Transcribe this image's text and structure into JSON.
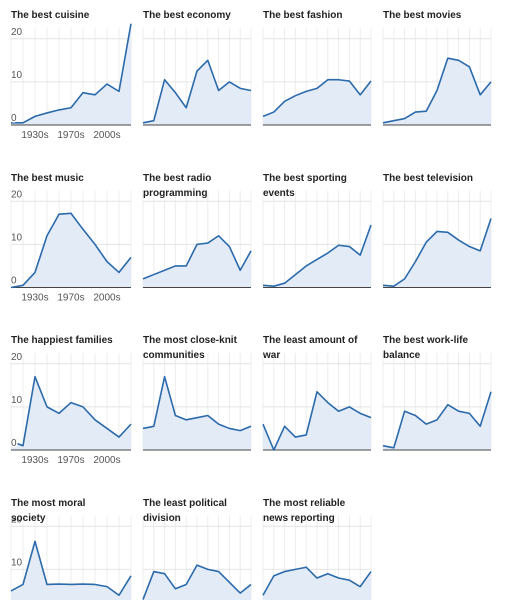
{
  "chart_data": {
    "type": "line",
    "categories": [
      null,
      null,
      "1930s",
      null,
      null,
      "1970s",
      null,
      null,
      "2000s",
      null,
      null
    ],
    "ylim": [
      0,
      22.5
    ],
    "yticks": [
      0,
      10,
      20
    ],
    "grid": true,
    "color": "#2b6aab",
    "fill": "#e3ebf7",
    "panels": [
      {
        "title": "The best cuisine",
        "values": [
          0.5,
          0.5,
          2,
          2.8,
          3.5,
          4,
          7.5,
          7,
          9.5,
          7.8,
          23.5
        ]
      },
      {
        "title": "The best economy",
        "values": [
          0.5,
          1,
          10.5,
          7.5,
          4,
          12.5,
          15,
          8,
          10,
          8.5,
          8
        ]
      },
      {
        "title": "The best fashion",
        "values": [
          2,
          3,
          5.5,
          6.8,
          7.8,
          8.5,
          10.5,
          10.5,
          10.2,
          7,
          10.2
        ]
      },
      {
        "title": "The best movies",
        "values": [
          0.5,
          1,
          1.5,
          3,
          3.2,
          8,
          15.5,
          15,
          13.5,
          7,
          10
        ]
      },
      {
        "title": "The best music",
        "values": [
          0,
          0.5,
          3.5,
          12,
          17,
          17.2,
          13.5,
          10,
          6,
          3.5,
          7
        ]
      },
      {
        "title": "The best radio programming",
        "values": [
          2,
          3,
          4,
          5,
          5,
          10,
          10.3,
          12,
          9.5,
          4,
          8.5
        ]
      },
      {
        "title": "The best sporting events",
        "values": [
          0.5,
          0.3,
          1,
          3,
          5,
          6.5,
          8,
          9.8,
          9.5,
          7.5,
          14.5
        ]
      },
      {
        "title": "The best television",
        "values": [
          0.5,
          0.3,
          2,
          6,
          10.5,
          13,
          12.8,
          11,
          9.5,
          8.5,
          16
        ]
      },
      {
        "title": "The happiest families",
        "values": [
          2,
          1,
          17,
          10,
          8.5,
          11,
          10,
          7,
          5,
          3,
          6
        ]
      },
      {
        "title": "The most close-knit communities",
        "values": [
          5,
          5.5,
          17,
          8,
          7,
          7.5,
          8,
          6,
          5,
          4.5,
          5.5
        ]
      },
      {
        "title": "The least amount of war",
        "values": [
          6,
          0,
          5.5,
          3,
          3.5,
          13.5,
          11,
          9,
          10,
          8.5,
          7.5
        ]
      },
      {
        "title": "The best work-life balance",
        "values": [
          1,
          0.5,
          9,
          8,
          6,
          7,
          10.5,
          9,
          8.5,
          5.5,
          13.5
        ]
      },
      {
        "title": "The most moral society",
        "values": [
          5,
          6.5,
          16.5,
          6.5,
          6.6,
          6.5,
          6.6,
          6.5,
          6,
          4,
          8.5
        ]
      },
      {
        "title": "The least political division",
        "values": [
          3,
          9.5,
          9,
          5.5,
          6.5,
          11,
          10,
          9.5,
          7,
          4.5,
          6.5
        ]
      },
      {
        "title": "The most reliable news reporting",
        "values": [
          4,
          8.5,
          9.5,
          10,
          10.5,
          8,
          9,
          8,
          7.5,
          6,
          9.5
        ]
      }
    ]
  }
}
